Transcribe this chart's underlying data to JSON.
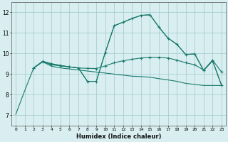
{
  "xlabel": "Humidex (Indice chaleur)",
  "xlim": [
    -0.5,
    23.5
  ],
  "ylim": [
    6.5,
    12.5
  ],
  "yticks": [
    7,
    8,
    9,
    10,
    11,
    12
  ],
  "xticks": [
    0,
    1,
    2,
    3,
    4,
    5,
    6,
    7,
    8,
    9,
    10,
    11,
    12,
    13,
    14,
    15,
    16,
    17,
    18,
    19,
    20,
    21,
    22,
    23
  ],
  "bg_color": "#d8eef0",
  "grid_color": "#a0c8cc",
  "line_color": "#1a7a6e",
  "line1_no_marker": {
    "x": [
      0,
      1,
      2,
      3,
      4,
      5,
      6,
      7,
      8,
      9,
      10,
      11,
      12,
      13,
      14,
      15,
      16,
      17,
      18,
      19,
      20,
      21,
      22,
      23
    ],
    "y": [
      7.05,
      8.2,
      9.3,
      9.6,
      9.38,
      9.3,
      9.25,
      9.2,
      9.15,
      9.1,
      9.05,
      9.0,
      8.95,
      8.9,
      8.88,
      8.85,
      8.78,
      8.72,
      8.65,
      8.55,
      8.5,
      8.45,
      8.45,
      8.45
    ]
  },
  "line2_marker": {
    "x": [
      2,
      3,
      4,
      5,
      6,
      7,
      8,
      9,
      10,
      11,
      12,
      13,
      14,
      15,
      16,
      17,
      18,
      19,
      20,
      21,
      22,
      23
    ],
    "y": [
      9.3,
      9.6,
      9.45,
      9.4,
      9.35,
      9.3,
      9.28,
      9.27,
      9.4,
      9.55,
      9.65,
      9.72,
      9.78,
      9.82,
      9.82,
      9.78,
      9.68,
      9.55,
      9.45,
      9.2,
      9.68,
      9.1
    ]
  },
  "line3_marker": {
    "x": [
      2,
      3,
      4,
      5,
      6,
      7,
      8,
      9,
      10,
      11,
      12,
      13,
      14,
      15,
      16,
      17,
      18,
      19,
      20,
      21,
      22,
      23
    ],
    "y": [
      9.3,
      9.62,
      9.5,
      9.42,
      9.35,
      9.3,
      8.65,
      8.65,
      10.05,
      11.35,
      11.52,
      11.7,
      11.85,
      11.88,
      11.28,
      10.75,
      10.45,
      9.95,
      9.98,
      9.18,
      9.65,
      8.45
    ]
  },
  "line4_no_marker": {
    "x": [
      2,
      3,
      4,
      5,
      6,
      7,
      8,
      9,
      10,
      11,
      12,
      13,
      14,
      15,
      16,
      17,
      18,
      19,
      20,
      21,
      22,
      23
    ],
    "y": [
      9.3,
      9.62,
      9.5,
      9.42,
      9.35,
      9.3,
      8.65,
      8.65,
      10.05,
      11.35,
      11.52,
      11.7,
      11.85,
      11.88,
      11.28,
      10.75,
      10.45,
      9.95,
      9.98,
      9.18,
      9.65,
      8.45
    ]
  }
}
